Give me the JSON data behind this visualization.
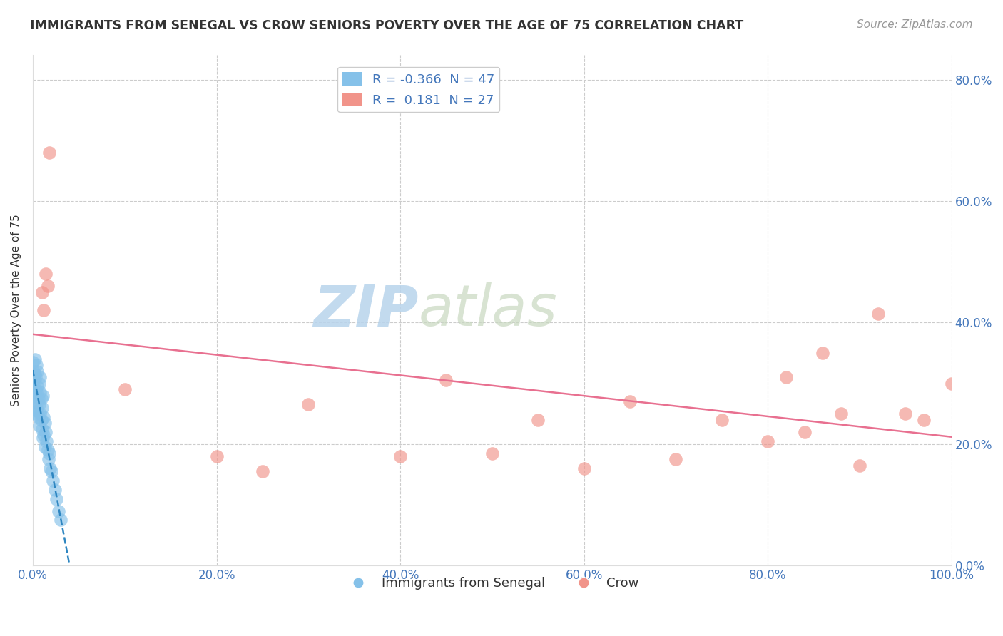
{
  "title": "IMMIGRANTS FROM SENEGAL VS CROW SENIORS POVERTY OVER THE AGE OF 75 CORRELATION CHART",
  "source": "Source: ZipAtlas.com",
  "ylabel": "Seniors Poverty Over the Age of 75",
  "legend_label_blue": "Immigrants from Senegal",
  "legend_label_pink": "Crow",
  "r_blue": -0.366,
  "n_blue": 47,
  "r_pink": 0.181,
  "n_pink": 27,
  "color_blue": "#85C1E9",
  "color_pink": "#F1948A",
  "line_color_blue": "#2E86C1",
  "line_color_pink": "#E87090",
  "xlim": [
    0.0,
    1.0
  ],
  "ylim": [
    0.0,
    0.84
  ],
  "xtick_vals": [
    0.0,
    0.2,
    0.4,
    0.6,
    0.8,
    1.0
  ],
  "ytick_vals": [
    0.0,
    0.2,
    0.4,
    0.6,
    0.8
  ],
  "background_color": "#FFFFFF",
  "blue_x": [
    0.0,
    0.0,
    0.001,
    0.001,
    0.001,
    0.002,
    0.002,
    0.002,
    0.003,
    0.003,
    0.003,
    0.004,
    0.004,
    0.004,
    0.005,
    0.005,
    0.005,
    0.006,
    0.006,
    0.007,
    0.007,
    0.007,
    0.008,
    0.008,
    0.008,
    0.009,
    0.009,
    0.01,
    0.01,
    0.011,
    0.011,
    0.012,
    0.012,
    0.013,
    0.013,
    0.014,
    0.015,
    0.016,
    0.017,
    0.018,
    0.019,
    0.02,
    0.022,
    0.024,
    0.026,
    0.028,
    0.03
  ],
  "blue_y": [
    0.335,
    0.295,
    0.32,
    0.28,
    0.305,
    0.315,
    0.27,
    0.34,
    0.29,
    0.25,
    0.31,
    0.26,
    0.33,
    0.285,
    0.295,
    0.255,
    0.32,
    0.275,
    0.245,
    0.3,
    0.265,
    0.23,
    0.285,
    0.25,
    0.31,
    0.24,
    0.275,
    0.26,
    0.225,
    0.28,
    0.21,
    0.245,
    0.215,
    0.235,
    0.195,
    0.22,
    0.205,
    0.19,
    0.175,
    0.185,
    0.16,
    0.155,
    0.14,
    0.125,
    0.11,
    0.09,
    0.075
  ],
  "pink_x": [
    0.01,
    0.012,
    0.014,
    0.016,
    0.018,
    0.1,
    0.2,
    0.25,
    0.3,
    0.4,
    0.45,
    0.5,
    0.55,
    0.6,
    0.65,
    0.7,
    0.75,
    0.8,
    0.82,
    0.84,
    0.86,
    0.88,
    0.9,
    0.92,
    0.95,
    0.97,
    1.0
  ],
  "pink_y": [
    0.45,
    0.42,
    0.48,
    0.46,
    0.68,
    0.29,
    0.18,
    0.155,
    0.265,
    0.18,
    0.305,
    0.185,
    0.24,
    0.16,
    0.27,
    0.175,
    0.24,
    0.205,
    0.31,
    0.22,
    0.35,
    0.25,
    0.165,
    0.415,
    0.25,
    0.24,
    0.3
  ]
}
